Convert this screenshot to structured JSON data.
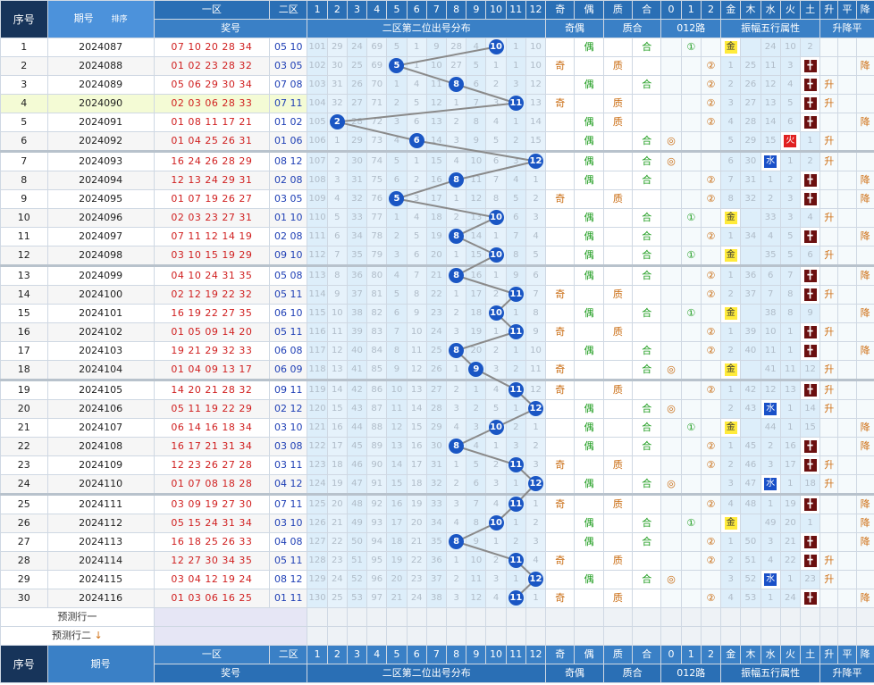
{
  "headers": {
    "seq": "序号",
    "qihao": "期号",
    "sort": "排序",
    "jianghao": "奖号",
    "zone1": "一区",
    "zone2": "二区",
    "dist": "二区第二位出号分布",
    "jiou": "奇偶",
    "zhihe": "质合",
    "lu": "012路",
    "zhenfu": "振幅五行属性",
    "shengjiang": "升降平",
    "dist_nums": [
      "1",
      "2",
      "3",
      "4",
      "5",
      "6",
      "7",
      "8",
      "9",
      "10",
      "11",
      "12"
    ],
    "jiou_cols": [
      "奇",
      "偶"
    ],
    "zhihe_cols": [
      "质",
      "合"
    ],
    "lu_cols": [
      "0",
      "1",
      "2"
    ],
    "wx_cols": [
      "金",
      "木",
      "水",
      "火",
      "土"
    ],
    "sj_cols": [
      "升",
      "平",
      "降"
    ]
  },
  "predict": [
    "预测行一",
    "预测行二"
  ],
  "rows": [
    {
      "seq": "1",
      "qihao": "2024087",
      "z1": "07 10 20 28 34",
      "z2": "05 10",
      "hit": 10,
      "miss": [
        "101",
        "29",
        "24",
        "69",
        "5",
        "1",
        "9",
        "28",
        "4",
        "",
        "1",
        "10"
      ],
      "jo": "偶",
      "zh": "合",
      "lu": "1",
      "wx": "金",
      "wxm": [
        "",
        "24",
        "10",
        "2"
      ],
      "sj": ""
    },
    {
      "seq": "2",
      "qihao": "2024088",
      "z1": "01 02 23 28 32",
      "z2": "03 05",
      "hit": 5,
      "miss": [
        "102",
        "30",
        "25",
        "69",
        "",
        "1",
        "10",
        "27",
        "5",
        "1",
        "1",
        "10"
      ],
      "jo": "奇",
      "zh": "质",
      "lu": "2",
      "wx": "土",
      "wxm": [
        "1",
        "25",
        "11",
        "3"
      ],
      "sj": "降"
    },
    {
      "seq": "3",
      "qihao": "2024089",
      "z1": "05 06 29 30 34",
      "z2": "07 08",
      "hit": 8,
      "miss": [
        "103",
        "31",
        "26",
        "70",
        "1",
        "4",
        "11",
        "",
        "6",
        "2",
        "3",
        "12"
      ],
      "jo": "偶",
      "zh": "合",
      "lu": "2",
      "wx": "土",
      "wxm": [
        "2",
        "26",
        "12",
        "4"
      ],
      "sj": "升"
    },
    {
      "seq": "4",
      "qihao": "2024090",
      "z1": "02 03 06 28 33",
      "z2": "07 11",
      "hit": 11,
      "miss": [
        "104",
        "32",
        "27",
        "71",
        "2",
        "5",
        "12",
        "1",
        "7",
        "3",
        "",
        "13"
      ],
      "jo": "奇",
      "zh": "质",
      "lu": "2",
      "wx": "土",
      "wxm": [
        "3",
        "27",
        "13",
        "5"
      ],
      "sj": "升"
    },
    {
      "seq": "5",
      "qihao": "2024091",
      "z1": "01 08 11 17 21",
      "z2": "01 02",
      "hit": 2,
      "miss": [
        "105",
        "",
        "28",
        "72",
        "3",
        "6",
        "13",
        "2",
        "8",
        "4",
        "1",
        "14"
      ],
      "jo": "偶",
      "zh": "质",
      "lu": "2",
      "wx": "土",
      "wxm": [
        "4",
        "28",
        "14",
        "6"
      ],
      "sj": "降"
    },
    {
      "seq": "6",
      "qihao": "2024092",
      "z1": "01 04 25 26 31",
      "z2": "01 06",
      "hit": 6,
      "miss": [
        "106",
        "1",
        "29",
        "73",
        "4",
        "",
        "14",
        "3",
        "9",
        "5",
        "2",
        "15"
      ],
      "jo": "偶",
      "zh": "合",
      "lu": "0",
      "wx": "火",
      "wxm": [
        "5",
        "29",
        "15",
        "1"
      ],
      "sj": "升"
    },
    {
      "seq": "7",
      "qihao": "2024093",
      "z1": "16 24 26 28 29",
      "z2": "08 12",
      "hit": 12,
      "miss": [
        "107",
        "2",
        "30",
        "74",
        "5",
        "1",
        "15",
        "4",
        "10",
        "6",
        "3",
        ""
      ],
      "jo": "偶",
      "zh": "合",
      "lu": "0",
      "wx": "水",
      "wxm": [
        "6",
        "30",
        "1",
        "2"
      ],
      "sj": "升"
    },
    {
      "seq": "8",
      "qihao": "2024094",
      "z1": "12 13 24 29 31",
      "z2": "02 08",
      "hit": 8,
      "miss": [
        "108",
        "3",
        "31",
        "75",
        "6",
        "2",
        "16",
        "",
        "11",
        "7",
        "4",
        "1"
      ],
      "jo": "偶",
      "zh": "合",
      "lu": "2",
      "wx": "土",
      "wxm": [
        "7",
        "31",
        "1",
        "2"
      ],
      "sj": "降"
    },
    {
      "seq": "9",
      "qihao": "2024095",
      "z1": "01 07 19 26 27",
      "z2": "03 05",
      "hit": 5,
      "miss": [
        "109",
        "4",
        "32",
        "76",
        "",
        "3",
        "17",
        "1",
        "12",
        "8",
        "5",
        "2"
      ],
      "jo": "奇",
      "zh": "质",
      "lu": "2",
      "wx": "土",
      "wxm": [
        "8",
        "32",
        "2",
        "3"
      ],
      "sj": "降"
    },
    {
      "seq": "10",
      "qihao": "2024096",
      "z1": "02 03 23 27 31",
      "z2": "01 10",
      "hit": 10,
      "miss": [
        "110",
        "5",
        "33",
        "77",
        "1",
        "4",
        "18",
        "2",
        "13",
        "",
        "6",
        "3"
      ],
      "jo": "偶",
      "zh": "合",
      "lu": "1",
      "wx": "金",
      "wxm": [
        "",
        "33",
        "3",
        "4"
      ],
      "sj": "升"
    },
    {
      "seq": "11",
      "qihao": "2024097",
      "z1": "07 11 12 14 19",
      "z2": "02 08",
      "hit": 8,
      "miss": [
        "111",
        "6",
        "34",
        "78",
        "2",
        "5",
        "19",
        "",
        "14",
        "1",
        "7",
        "4"
      ],
      "jo": "偶",
      "zh": "合",
      "lu": "2",
      "wx": "土",
      "wxm": [
        "1",
        "34",
        "4",
        "5"
      ],
      "sj": "降"
    },
    {
      "seq": "12",
      "qihao": "2024098",
      "z1": "03 10 15 19 29",
      "z2": "09 10",
      "hit": 10,
      "miss": [
        "112",
        "7",
        "35",
        "79",
        "3",
        "6",
        "20",
        "1",
        "15",
        "",
        "8",
        "5"
      ],
      "jo": "偶",
      "zh": "合",
      "lu": "1",
      "wx": "金",
      "wxm": [
        "",
        "35",
        "5",
        "6"
      ],
      "sj": "升"
    },
    {
      "seq": "13",
      "qihao": "2024099",
      "z1": "04 10 24 31 35",
      "z2": "05 08",
      "hit": 8,
      "miss": [
        "113",
        "8",
        "36",
        "80",
        "4",
        "7",
        "21",
        "",
        "16",
        "1",
        "9",
        "6"
      ],
      "jo": "偶",
      "zh": "合",
      "lu": "2",
      "wx": "土",
      "wxm": [
        "1",
        "36",
        "6",
        "7"
      ],
      "sj": "降"
    },
    {
      "seq": "14",
      "qihao": "2024100",
      "z1": "02 12 19 22 32",
      "z2": "05 11",
      "hit": 11,
      "miss": [
        "114",
        "9",
        "37",
        "81",
        "5",
        "8",
        "22",
        "1",
        "17",
        "2",
        "",
        "7"
      ],
      "jo": "奇",
      "zh": "质",
      "lu": "2",
      "wx": "土",
      "wxm": [
        "2",
        "37",
        "7",
        "8"
      ],
      "sj": "升"
    },
    {
      "seq": "15",
      "qihao": "2024101",
      "z1": "16 19 22 27 35",
      "z2": "06 10",
      "hit": 10,
      "miss": [
        "115",
        "10",
        "38",
        "82",
        "6",
        "9",
        "23",
        "2",
        "18",
        "",
        "1",
        "8"
      ],
      "jo": "偶",
      "zh": "合",
      "lu": "1",
      "wx": "金",
      "wxm": [
        "",
        "38",
        "8",
        "9"
      ],
      "sj": "降"
    },
    {
      "seq": "16",
      "qihao": "2024102",
      "z1": "01 05 09 14 20",
      "z2": "05 11",
      "hit": 11,
      "miss": [
        "116",
        "11",
        "39",
        "83",
        "7",
        "10",
        "24",
        "3",
        "19",
        "1",
        "",
        "9"
      ],
      "jo": "奇",
      "zh": "质",
      "lu": "2",
      "wx": "土",
      "wxm": [
        "1",
        "39",
        "10",
        "1"
      ],
      "sj": "升"
    },
    {
      "seq": "17",
      "qihao": "2024103",
      "z1": "19 21 29 32 33",
      "z2": "06 08",
      "hit": 8,
      "miss": [
        "117",
        "12",
        "40",
        "84",
        "8",
        "11",
        "25",
        "",
        "20",
        "2",
        "1",
        "10"
      ],
      "jo": "偶",
      "zh": "合",
      "lu": "2",
      "wx": "土",
      "wxm": [
        "2",
        "40",
        "11",
        "1"
      ],
      "sj": "降"
    },
    {
      "seq": "18",
      "qihao": "2024104",
      "z1": "01 04 09 13 17",
      "z2": "06 09",
      "hit": 9,
      "miss": [
        "118",
        "13",
        "41",
        "85",
        "9",
        "12",
        "26",
        "1",
        "",
        "3",
        "2",
        "11"
      ],
      "jo": "奇",
      "zh": "合",
      "lu": "0",
      "wx": "金",
      "wxm": [
        "",
        "41",
        "11",
        "12"
      ],
      "sj": "升"
    },
    {
      "seq": "19",
      "qihao": "2024105",
      "z1": "14 20 21 28 32",
      "z2": "09 11",
      "hit": 11,
      "miss": [
        "119",
        "14",
        "42",
        "86",
        "10",
        "13",
        "27",
        "2",
        "1",
        "4",
        "",
        "12"
      ],
      "jo": "奇",
      "zh": "质",
      "lu": "2",
      "wx": "土",
      "wxm": [
        "1",
        "42",
        "12",
        "13"
      ],
      "sj": "升"
    },
    {
      "seq": "20",
      "qihao": "2024106",
      "z1": "05 11 19 22 29",
      "z2": "02 12",
      "hit": 12,
      "miss": [
        "120",
        "15",
        "43",
        "87",
        "11",
        "14",
        "28",
        "3",
        "2",
        "5",
        "1",
        ""
      ],
      "jo": "偶",
      "zh": "合",
      "lu": "0",
      "wx": "水",
      "wxm": [
        "2",
        "43",
        "1",
        "14"
      ],
      "sj": "升"
    },
    {
      "seq": "21",
      "qihao": "2024107",
      "z1": "06 14 16 18 34",
      "z2": "03 10",
      "hit": 10,
      "miss": [
        "121",
        "16",
        "44",
        "88",
        "12",
        "15",
        "29",
        "4",
        "3",
        "",
        "2",
        "1"
      ],
      "jo": "偶",
      "zh": "合",
      "lu": "1",
      "wx": "金",
      "wxm": [
        "",
        "44",
        "1",
        "15"
      ],
      "sj": "降"
    },
    {
      "seq": "22",
      "qihao": "2024108",
      "z1": "16 17 21 31 34",
      "z2": "03 08",
      "hit": 8,
      "miss": [
        "122",
        "17",
        "45",
        "89",
        "13",
        "16",
        "30",
        "",
        "4",
        "1",
        "3",
        "2"
      ],
      "jo": "偶",
      "zh": "合",
      "lu": "2",
      "wx": "土",
      "wxm": [
        "1",
        "45",
        "2",
        "16"
      ],
      "sj": "降"
    },
    {
      "seq": "23",
      "qihao": "2024109",
      "z1": "12 23 26 27 28",
      "z2": "03 11",
      "hit": 11,
      "miss": [
        "123",
        "18",
        "46",
        "90",
        "14",
        "17",
        "31",
        "1",
        "5",
        "2",
        "",
        "3"
      ],
      "jo": "奇",
      "zh": "质",
      "lu": "2",
      "wx": "土",
      "wxm": [
        "2",
        "46",
        "3",
        "17"
      ],
      "sj": "升"
    },
    {
      "seq": "24",
      "qihao": "2024110",
      "z1": "01 07 08 18 28",
      "z2": "04 12",
      "hit": 12,
      "miss": [
        "124",
        "19",
        "47",
        "91",
        "15",
        "18",
        "32",
        "2",
        "6",
        "3",
        "1",
        ""
      ],
      "jo": "偶",
      "zh": "合",
      "lu": "0",
      "wx": "水",
      "wxm": [
        "3",
        "47",
        "1",
        "18"
      ],
      "sj": "升"
    },
    {
      "seq": "25",
      "qihao": "2024111",
      "z1": "03 09 19 27 30",
      "z2": "07 11",
      "hit": 11,
      "miss": [
        "125",
        "20",
        "48",
        "92",
        "16",
        "19",
        "33",
        "3",
        "7",
        "4",
        "",
        "1"
      ],
      "jo": "奇",
      "zh": "质",
      "lu": "2",
      "wx": "土",
      "wxm": [
        "4",
        "48",
        "1",
        "19"
      ],
      "sj": "降"
    },
    {
      "seq": "26",
      "qihao": "2024112",
      "z1": "05 15 24 31 34",
      "z2": "03 10",
      "hit": 10,
      "miss": [
        "126",
        "21",
        "49",
        "93",
        "17",
        "20",
        "34",
        "4",
        "8",
        "",
        "1",
        "2"
      ],
      "jo": "偶",
      "zh": "合",
      "lu": "1",
      "wx": "金",
      "wxm": [
        "",
        "49",
        "20",
        "1"
      ],
      "sj": "降"
    },
    {
      "seq": "27",
      "qihao": "2024113",
      "z1": "16 18 25 26 33",
      "z2": "04 08",
      "hit": 8,
      "miss": [
        "127",
        "22",
        "50",
        "94",
        "18",
        "21",
        "35",
        "",
        "9",
        "1",
        "2",
        "3"
      ],
      "jo": "偶",
      "zh": "合",
      "lu": "2",
      "wx": "土",
      "wxm": [
        "1",
        "50",
        "3",
        "21"
      ],
      "sj": "降"
    },
    {
      "seq": "28",
      "qihao": "2024114",
      "z1": "12 27 30 34 35",
      "z2": "05 11",
      "hit": 11,
      "miss": [
        "128",
        "23",
        "51",
        "95",
        "19",
        "22",
        "36",
        "1",
        "10",
        "2",
        "",
        "4"
      ],
      "jo": "奇",
      "zh": "质",
      "lu": "2",
      "wx": "土",
      "wxm": [
        "2",
        "51",
        "4",
        "22"
      ],
      "sj": "升"
    },
    {
      "seq": "29",
      "qihao": "2024115",
      "z1": "03 04 12 19 24",
      "z2": "08 12",
      "hit": 12,
      "miss": [
        "129",
        "24",
        "52",
        "96",
        "20",
        "23",
        "37",
        "2",
        "11",
        "3",
        "1",
        ""
      ],
      "jo": "偶",
      "zh": "合",
      "lu": "0",
      "wx": "水",
      "wxm": [
        "3",
        "52",
        "1",
        "23"
      ],
      "sj": "升"
    },
    {
      "seq": "30",
      "qihao": "2024116",
      "z1": "01 03 06 16 25",
      "z2": "01 11",
      "hit": 11,
      "miss": [
        "130",
        "25",
        "53",
        "97",
        "21",
        "24",
        "38",
        "3",
        "12",
        "4",
        "",
        "1"
      ],
      "jo": "奇",
      "zh": "质",
      "lu": "2",
      "wx": "土",
      "wxm": [
        "4",
        "53",
        "1",
        "24"
      ],
      "sj": "降"
    }
  ]
}
